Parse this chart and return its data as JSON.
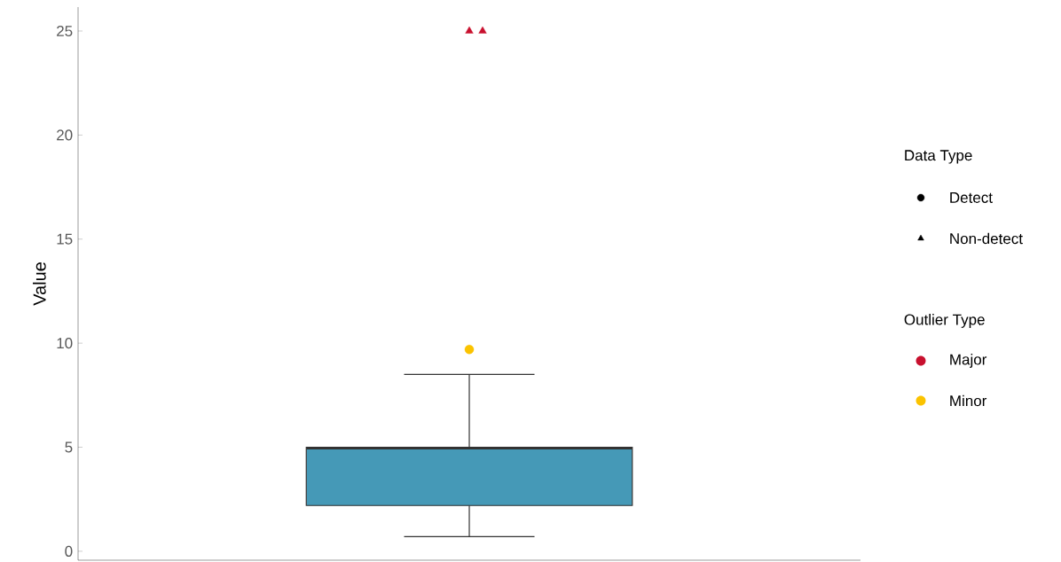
{
  "chart_data": {
    "type": "box",
    "ylabel": "Value",
    "categories": [
      null
    ],
    "ylim": [
      -0.43,
      26.15
    ],
    "yticks": [
      0,
      5,
      10,
      15,
      20,
      25
    ],
    "legend": "right",
    "legend_title": "Outlier Type",
    "annotations": [
      "Data Type",
      "Detect",
      "Non-detect"
    ],
    "series": [
      {
        "color": "#4599b7",
        "boxes": [
          {
            "low": 0.7,
            "q1": 2.2,
            "median": 4.95,
            "q3": 5.0,
            "high": 8.5
          }
        ]
      },
      {
        "type": "scatter",
        "name": "Major",
        "color": "#c8102e",
        "marker": "triangle",
        "x": [
          null,
          null
        ],
        "values": [
          25,
          25
        ]
      },
      {
        "type": "scatter",
        "name": "Minor",
        "color": "#fbc300",
        "marker": "circle",
        "values": [
          9.7
        ]
      }
    ]
  }
}
